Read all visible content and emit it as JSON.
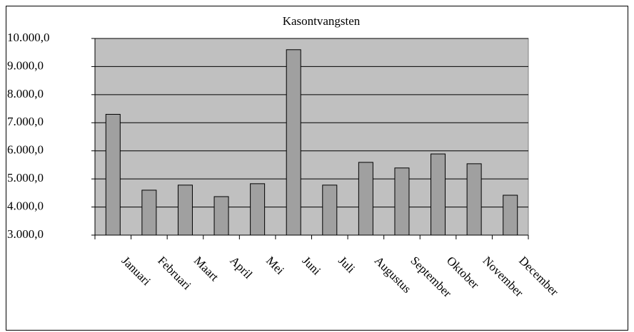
{
  "chart_data": {
    "type": "bar",
    "title": "Kasontvangsten",
    "categories": [
      "Januari",
      "Februari",
      "Maart",
      "April",
      "Mei",
      "Juni",
      "Juli",
      "Augustus",
      "September",
      "Oktober",
      "November",
      "December"
    ],
    "values": [
      7300,
      4600,
      4780,
      4370,
      4830,
      9600,
      4780,
      5590,
      5390,
      5890,
      5540,
      4420
    ],
    "color": "#a0a0a0",
    "ylim": [
      3000,
      10000
    ],
    "yticks": [
      {
        "value": 3000,
        "label": "3.000,0"
      },
      {
        "value": 4000,
        "label": "4.000,0"
      },
      {
        "value": 5000,
        "label": "5.000,0"
      },
      {
        "value": 6000,
        "label": "6.000,0"
      },
      {
        "value": 7000,
        "label": "7.000,0"
      },
      {
        "value": 8000,
        "label": "8.000,0"
      },
      {
        "value": 9000,
        "label": "9.000,0"
      },
      {
        "value": 10000,
        "label": "10.000,0"
      }
    ],
    "grid": true
  }
}
